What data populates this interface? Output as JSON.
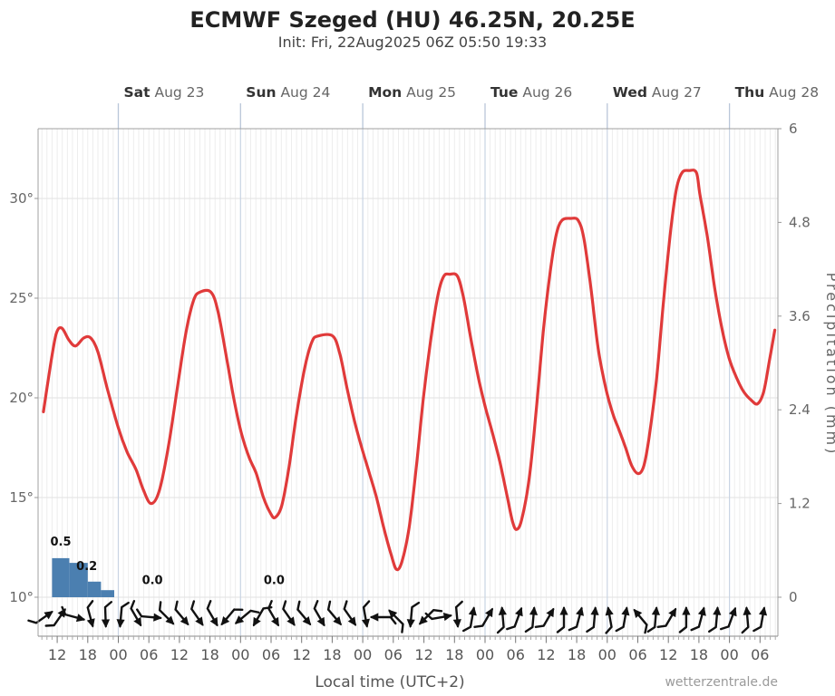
{
  "header": {
    "title": "ECMWF Szeged (HU) 46.25N, 20.25E",
    "subtitle": "Init: Fri, 22Aug2025 06Z 05:50 19:33"
  },
  "footer": {
    "xlabel": "Local time (UTC+2)",
    "watermark": "wetterzentrale.de"
  },
  "chart_data": {
    "type": "meteogram (line + bar + wind arrows)",
    "title": "ECMWF Szeged (HU) 46.25N, 20.25E",
    "x_axis": {
      "label": "Local time (UTC+2)",
      "hours_domain_rel_sat00": [
        -15.75,
        129.5
      ],
      "hour_positions": [
        -12,
        -6,
        0,
        6,
        12,
        18,
        24,
        30,
        36,
        42,
        48,
        54,
        60,
        66,
        72,
        78,
        84,
        90,
        96,
        102,
        108,
        114,
        120,
        126
      ],
      "hour_labels": [
        "12",
        "18",
        "00",
        "06",
        "12",
        "18",
        "00",
        "06",
        "12",
        "18",
        "00",
        "06",
        "12",
        "18",
        "00",
        "06",
        "12",
        "18",
        "00",
        "06",
        "12",
        "18",
        "00",
        "06"
      ],
      "day_labels": [
        {
          "bold": "Sat",
          "rest": " Aug 23",
          "hour": 0
        },
        {
          "bold": "Sun",
          "rest": " Aug 24",
          "hour": 24
        },
        {
          "bold": "Mon",
          "rest": " Aug 25",
          "hour": 48
        },
        {
          "bold": "Tue",
          "rest": " Aug 26",
          "hour": 72
        },
        {
          "bold": "Wed",
          "rest": " Aug 27",
          "hour": 96
        },
        {
          "bold": "Thu",
          "rest": " Aug 28",
          "hour": 120
        }
      ]
    },
    "temp_axis": {
      "unit": "°C",
      "range": [
        10,
        33.5
      ],
      "ticks": [
        {
          "label": "10°",
          "value": 10
        },
        {
          "label": "15°",
          "value": 15
        },
        {
          "label": "20°",
          "value": 20
        },
        {
          "label": "25°",
          "value": 25
        },
        {
          "label": "30°",
          "value": 30
        }
      ]
    },
    "precip_axis": {
      "label": "Precipitation (mm)",
      "range": [
        0,
        6
      ],
      "ticks": [
        {
          "label": "0",
          "value": 0
        },
        {
          "label": "1.2",
          "value": 1.2
        },
        {
          "label": "2.4",
          "value": 2.4
        },
        {
          "label": "3.6",
          "value": 3.6
        },
        {
          "label": "4.8",
          "value": 4.8
        },
        {
          "label": "6",
          "value": 6
        }
      ]
    },
    "temperature_series": {
      "color": "#e03a3a",
      "points_hour_degC": [
        [
          -14.7,
          19.3
        ],
        [
          -13.4,
          21.5
        ],
        [
          -12.2,
          23.2
        ],
        [
          -11.1,
          23.5
        ],
        [
          -9.7,
          22.9
        ],
        [
          -8.4,
          22.6
        ],
        [
          -6.8,
          23.0
        ],
        [
          -5.4,
          23.0
        ],
        [
          -4.0,
          22.3
        ],
        [
          -2.2,
          20.5
        ],
        [
          0,
          18.5
        ],
        [
          1.7,
          17.3
        ],
        [
          3.5,
          16.4
        ],
        [
          4.9,
          15.4
        ],
        [
          6.4,
          14.7
        ],
        [
          8.0,
          15.3
        ],
        [
          9.8,
          17.5
        ],
        [
          11.6,
          20.5
        ],
        [
          13.3,
          23.3
        ],
        [
          14.8,
          24.9
        ],
        [
          16.0,
          25.3
        ],
        [
          18.2,
          25.3
        ],
        [
          19.6,
          24.3
        ],
        [
          21.4,
          21.8
        ],
        [
          22.8,
          19.8
        ],
        [
          24.2,
          18.2
        ],
        [
          25.7,
          17.0
        ],
        [
          27.1,
          16.2
        ],
        [
          28.5,
          15.0
        ],
        [
          29.9,
          14.2
        ],
        [
          30.8,
          14.0
        ],
        [
          32.1,
          14.6
        ],
        [
          33.5,
          16.5
        ],
        [
          34.9,
          19.0
        ],
        [
          36.6,
          21.5
        ],
        [
          38.0,
          22.8
        ],
        [
          39.2,
          23.1
        ],
        [
          42.1,
          23.1
        ],
        [
          43.5,
          22.2
        ],
        [
          44.9,
          20.5
        ],
        [
          46.4,
          18.8
        ],
        [
          47.8,
          17.5
        ],
        [
          49.2,
          16.3
        ],
        [
          50.7,
          15.0
        ],
        [
          52.1,
          13.5
        ],
        [
          53.5,
          12.2
        ],
        [
          54.6,
          11.4
        ],
        [
          55.7,
          11.8
        ],
        [
          57.1,
          13.5
        ],
        [
          58.5,
          16.5
        ],
        [
          59.9,
          20.0
        ],
        [
          61.4,
          23.0
        ],
        [
          62.8,
          25.2
        ],
        [
          63.9,
          26.1
        ],
        [
          65.1,
          26.2
        ],
        [
          66.6,
          26.1
        ],
        [
          67.8,
          25.0
        ],
        [
          69.2,
          23.0
        ],
        [
          70.7,
          21.0
        ],
        [
          72.1,
          19.5
        ],
        [
          73.5,
          18.2
        ],
        [
          74.9,
          16.8
        ],
        [
          76.4,
          15.0
        ],
        [
          77.4,
          13.8
        ],
        [
          78.2,
          13.4
        ],
        [
          79.2,
          13.9
        ],
        [
          80.7,
          16.0
        ],
        [
          82.1,
          19.5
        ],
        [
          83.5,
          23.5
        ],
        [
          84.9,
          26.5
        ],
        [
          86.0,
          28.2
        ],
        [
          87.1,
          28.9
        ],
        [
          88.9,
          29.0
        ],
        [
          90.3,
          28.9
        ],
        [
          91.4,
          28.0
        ],
        [
          92.8,
          25.5
        ],
        [
          94.2,
          22.5
        ],
        [
          95.7,
          20.5
        ],
        [
          97.1,
          19.2
        ],
        [
          98.3,
          18.4
        ],
        [
          99.6,
          17.5
        ],
        [
          100.8,
          16.6
        ],
        [
          102.1,
          16.2
        ],
        [
          103.2,
          16.6
        ],
        [
          104.2,
          18.0
        ],
        [
          105.7,
          21.0
        ],
        [
          107.1,
          25.0
        ],
        [
          108.5,
          28.5
        ],
        [
          109.6,
          30.5
        ],
        [
          110.7,
          31.3
        ],
        [
          112.1,
          31.4
        ],
        [
          113.5,
          31.3
        ],
        [
          114.2,
          30.2
        ],
        [
          115.7,
          28.0
        ],
        [
          117.1,
          25.5
        ],
        [
          118.5,
          23.5
        ],
        [
          119.9,
          22.0
        ],
        [
          121.4,
          21.0
        ],
        [
          122.8,
          20.3
        ],
        [
          124.2,
          19.9
        ],
        [
          125.5,
          19.7
        ],
        [
          126.7,
          20.3
        ],
        [
          127.8,
          21.8
        ],
        [
          128.9,
          23.4
        ]
      ]
    },
    "precip_bars": {
      "color": "#4b7fb0",
      "bars": [
        {
          "from": -13.0,
          "to": -9.6,
          "mm": 0.5
        },
        {
          "from": -9.6,
          "to": -6.0,
          "mm": 0.44
        },
        {
          "from": -6.0,
          "to": -3.4,
          "mm": 0.2
        },
        {
          "from": -3.4,
          "to": -0.8,
          "mm": 0.09
        }
      ],
      "labels": [
        {
          "text": "0.5",
          "hour": -11.3,
          "mm": 0.66
        },
        {
          "text": "0.2",
          "hour": -6.2,
          "mm": 0.35
        },
        {
          "text": "0.0",
          "hour": 6.7,
          "mm": 0.17
        },
        {
          "text": "0.0",
          "hour": 30.6,
          "mm": 0.17
        }
      ]
    },
    "wind_arrows": {
      "color": "#111111",
      "convention": "arrow points with the wind; degrees clockwise from east",
      "start_hour": -14.5,
      "step_hours": 3,
      "rotations_deg": [
        -35,
        -55,
        15,
        75,
        88,
        95,
        60,
        5,
        45,
        50,
        55,
        60,
        130,
        140,
        120,
        60,
        55,
        50,
        60,
        50,
        55,
        80,
        180,
        -135,
        95,
        135,
        -10,
        85,
        -80,
        -60,
        -95,
        -70,
        -85,
        -60,
        -90,
        -75,
        -85,
        -100,
        -80,
        -130,
        -85,
        -60,
        -90,
        -75,
        -85,
        -70,
        -95,
        -80
      ]
    }
  }
}
